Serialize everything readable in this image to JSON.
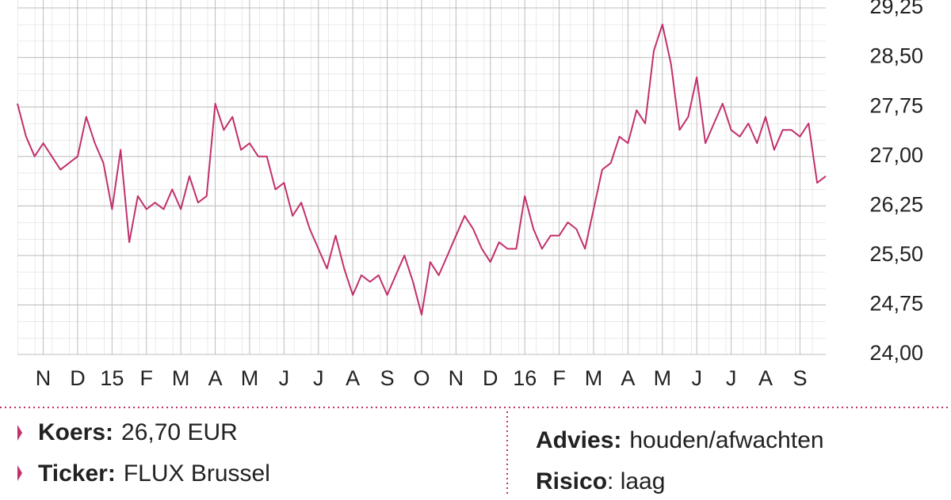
{
  "chart_data": {
    "type": "line",
    "x": [
      -0.75,
      -0.5,
      -0.25,
      0,
      0.25,
      0.5,
      0.75,
      1,
      1.25,
      1.5,
      1.75,
      2,
      2.25,
      2.5,
      2.75,
      3,
      3.25,
      3.5,
      3.75,
      4,
      4.25,
      4.5,
      4.75,
      5,
      5.25,
      5.5,
      5.75,
      6,
      6.25,
      6.5,
      6.75,
      7,
      7.25,
      7.5,
      7.75,
      8,
      8.25,
      8.5,
      8.75,
      9,
      9.25,
      9.5,
      9.75,
      10,
      10.25,
      10.5,
      10.75,
      11,
      11.25,
      11.5,
      11.75,
      12,
      12.25,
      12.5,
      12.75,
      13,
      13.25,
      13.5,
      13.75,
      14,
      14.25,
      14.5,
      14.75,
      15,
      15.25,
      15.5,
      15.75,
      16,
      16.25,
      16.5,
      16.75,
      17,
      17.25,
      17.5,
      17.75,
      18,
      18.25,
      18.5,
      18.75,
      19,
      19.25,
      19.5,
      19.75,
      20,
      20.25,
      20.5,
      20.75,
      21,
      21.25,
      21.5,
      21.75,
      22,
      22.25,
      22.5,
      22.75
    ],
    "series": [
      {
        "color": "#c2306c",
        "values": [
          27.8,
          27.3,
          27.0,
          27.2,
          27.0,
          26.8,
          26.9,
          27.0,
          27.6,
          27.2,
          26.9,
          26.2,
          27.1,
          25.7,
          26.4,
          26.2,
          26.3,
          26.2,
          26.5,
          26.2,
          26.7,
          26.3,
          26.4,
          27.8,
          27.4,
          27.6,
          27.1,
          27.2,
          27.0,
          27.0,
          26.5,
          26.6,
          26.1,
          26.3,
          25.9,
          25.6,
          25.3,
          25.8,
          25.3,
          24.9,
          25.2,
          25.1,
          25.2,
          24.9,
          25.2,
          25.5,
          25.1,
          24.6,
          25.4,
          25.2,
          25.5,
          25.8,
          26.1,
          25.9,
          25.6,
          25.4,
          25.7,
          25.6,
          25.6,
          26.4,
          25.9,
          25.6,
          25.8,
          25.8,
          26.0,
          25.9,
          25.6,
          26.2,
          26.8,
          26.9,
          27.3,
          27.2,
          27.7,
          27.5,
          28.6,
          29.0,
          28.4,
          27.4,
          27.6,
          28.2,
          27.2,
          27.5,
          27.8,
          27.4,
          27.3,
          27.5,
          27.2,
          27.6,
          27.1,
          27.4,
          27.4,
          27.3,
          27.5,
          26.6,
          26.7
        ]
      }
    ],
    "xlim": [
      -0.75,
      22.75
    ],
    "xticks": [
      {
        "value": 0,
        "label": "N"
      },
      {
        "value": 1,
        "label": "D"
      },
      {
        "value": 2,
        "label": "15"
      },
      {
        "value": 3,
        "label": "F"
      },
      {
        "value": 4,
        "label": "M"
      },
      {
        "value": 5,
        "label": "A"
      },
      {
        "value": 6,
        "label": "M"
      },
      {
        "value": 7,
        "label": "J"
      },
      {
        "value": 8,
        "label": "J"
      },
      {
        "value": 9,
        "label": "A"
      },
      {
        "value": 10,
        "label": "S"
      },
      {
        "value": 11,
        "label": "O"
      },
      {
        "value": 12,
        "label": "N"
      },
      {
        "value": 13,
        "label": "D"
      },
      {
        "value": 14,
        "label": "16"
      },
      {
        "value": 15,
        "label": "F"
      },
      {
        "value": 16,
        "label": "M"
      },
      {
        "value": 17,
        "label": "A"
      },
      {
        "value": 18,
        "label": "M"
      },
      {
        "value": 19,
        "label": "J"
      },
      {
        "value": 20,
        "label": "J"
      },
      {
        "value": 21,
        "label": "A"
      },
      {
        "value": 22,
        "label": "S"
      }
    ],
    "ylim": [
      24.0,
      29.25
    ],
    "yticks": [
      {
        "value": 24.0,
        "label": "24,00"
      },
      {
        "value": 24.75,
        "label": "24,75"
      },
      {
        "value": 25.5,
        "label": "25,50"
      },
      {
        "value": 26.25,
        "label": "26,25"
      },
      {
        "value": 27.0,
        "label": "27,00"
      },
      {
        "value": 27.75,
        "label": "27,75"
      },
      {
        "value": 28.5,
        "label": "28,50"
      },
      {
        "value": 29.25,
        "label": "29,25"
      }
    ],
    "grid": true
  },
  "info": {
    "koers": {
      "label": "Koers:",
      "value": "26,70 EUR"
    },
    "ticker": {
      "label": "Ticker:",
      "value": "FLUX Brussel"
    },
    "advies": {
      "label": "Advies:",
      "value": "houden/afwachten"
    },
    "risico": {
      "label": "Risico",
      "value": ": laag"
    }
  }
}
